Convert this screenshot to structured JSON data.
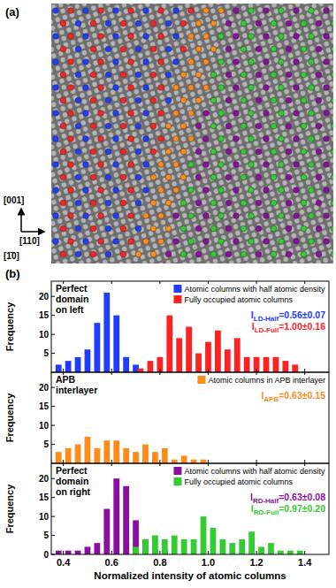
{
  "panel_a": {
    "label": "(a)",
    "up": "[001]",
    "right": "[110]",
    "view": "[1̄0]"
  },
  "panel_b": {
    "label": "(b)"
  },
  "chart_data": [
    {
      "type": "bar",
      "title": [
        "Perfect",
        "domain",
        "on left"
      ],
      "ylabel": "Frequency",
      "xlim": [
        0.35,
        1.5
      ],
      "xticks": [
        0.4,
        0.6,
        0.8,
        {
          "value": 1,
          "label": "1.0"
        },
        1.2,
        1.4
      ],
      "ylim": [
        0,
        24
      ],
      "yticks": [
        5,
        10,
        15,
        20
      ],
      "tick_labels": "y",
      "legend": "upper right",
      "series": [
        {
          "name": "Atomic columns with half atomic density",
          "color": "#1f3cff",
          "x": [
            0.38,
            0.42,
            0.46,
            0.5,
            0.54,
            0.58,
            0.62,
            0.66,
            0.7
          ],
          "values": [
            2,
            3,
            4,
            6,
            13,
            21,
            15,
            4,
            2
          ]
        },
        {
          "name": "Fully occupied atomic columns",
          "color": "#ff2222",
          "x": [
            0.72,
            0.76,
            0.8,
            0.84,
            0.88,
            0.92,
            0.96,
            1.0,
            1.04,
            1.08,
            1.12,
            1.16,
            1.2,
            1.24,
            1.28,
            1.32,
            1.36
          ],
          "values": [
            1,
            3,
            4,
            15,
            9,
            12,
            5,
            8,
            11,
            6,
            9,
            4,
            4,
            4,
            4,
            3,
            2
          ]
        }
      ],
      "annotations": [
        {
          "symbol": "I",
          "subscript": "LD-Half",
          "text": "=0.56±0.07",
          "color": "#1f3cff"
        },
        {
          "symbol": "I",
          "subscript": "LD-Full",
          "text": "=1.00±0.16",
          "color": "#ff2222"
        }
      ]
    },
    {
      "type": "bar",
      "title": [
        "APB",
        "interlayer"
      ],
      "ylabel": "Frequency",
      "xlim": [
        0.35,
        1.5
      ],
      "xticks": [
        0.4,
        0.6,
        0.8,
        {
          "value": 1,
          "label": "1.0"
        },
        1.2,
        1.4
      ],
      "ylim": [
        0,
        24
      ],
      "yticks": [
        5,
        10,
        15,
        20
      ],
      "tick_labels": "y",
      "legend": "upper right",
      "series": [
        {
          "name": "Atomic columns in APB interlayer",
          "color": "#ff8c1a",
          "x": [
            0.34,
            0.38,
            0.42,
            0.46,
            0.5,
            0.54,
            0.58,
            0.62,
            0.66,
            0.7,
            0.74,
            0.78,
            0.82,
            0.86,
            0.9,
            0.94,
            0.98
          ],
          "values": [
            1,
            3,
            4,
            5,
            7,
            4,
            6,
            6,
            4,
            3,
            5,
            3,
            4,
            1,
            2,
            1,
            1
          ]
        }
      ],
      "annotations": [
        {
          "symbol": "I",
          "subscript": "APB",
          "text": "=0.63±0.15",
          "color": "#ff8c1a"
        }
      ]
    },
    {
      "type": "bar",
      "title": [
        "Perfect",
        "domain",
        "on right"
      ],
      "ylabel": "Frequency",
      "xlabel": "Normalized intensity of atomic columns",
      "xlim": [
        0.35,
        1.5
      ],
      "xticks": [
        0.4,
        0.6,
        0.8,
        {
          "value": 1,
          "label": "1.0"
        },
        1.2,
        1.4
      ],
      "ylim": [
        0,
        24
      ],
      "yticks": [
        0,
        5,
        10,
        15,
        20
      ],
      "legend": "upper right",
      "series": [
        {
          "name": "Atomic columns with half atomic density",
          "color": "#8a0fa0",
          "x": [
            0.38,
            0.42,
            0.46,
            0.5,
            0.54,
            0.58,
            0.62,
            0.66,
            0.7,
            0.74,
            0.78,
            0.82
          ],
          "values": [
            1,
            1,
            1,
            2,
            3,
            12,
            20,
            18,
            9,
            4,
            1,
            1
          ]
        },
        {
          "name": "Fully occupied atomic columns",
          "color": "#33cc33",
          "x": [
            0.7,
            0.74,
            0.78,
            0.82,
            0.86,
            0.9,
            0.94,
            0.98,
            1.02,
            1.06,
            1.1,
            1.14,
            1.18,
            1.22,
            1.26,
            1.3,
            1.34,
            1.38
          ],
          "values": [
            2,
            4,
            5,
            4,
            5,
            4,
            4,
            10,
            7,
            4,
            3,
            4,
            6,
            2,
            3,
            1,
            1,
            1
          ]
        }
      ],
      "annotations": [
        {
          "symbol": "I",
          "subscript": "RD-Half",
          "text": "=0.63±0.08",
          "color": "#8a0fa0"
        },
        {
          "symbol": "I",
          "subscript": "RD-Full",
          "text": "=0.97±0.20",
          "color": "#33cc33"
        }
      ]
    }
  ]
}
